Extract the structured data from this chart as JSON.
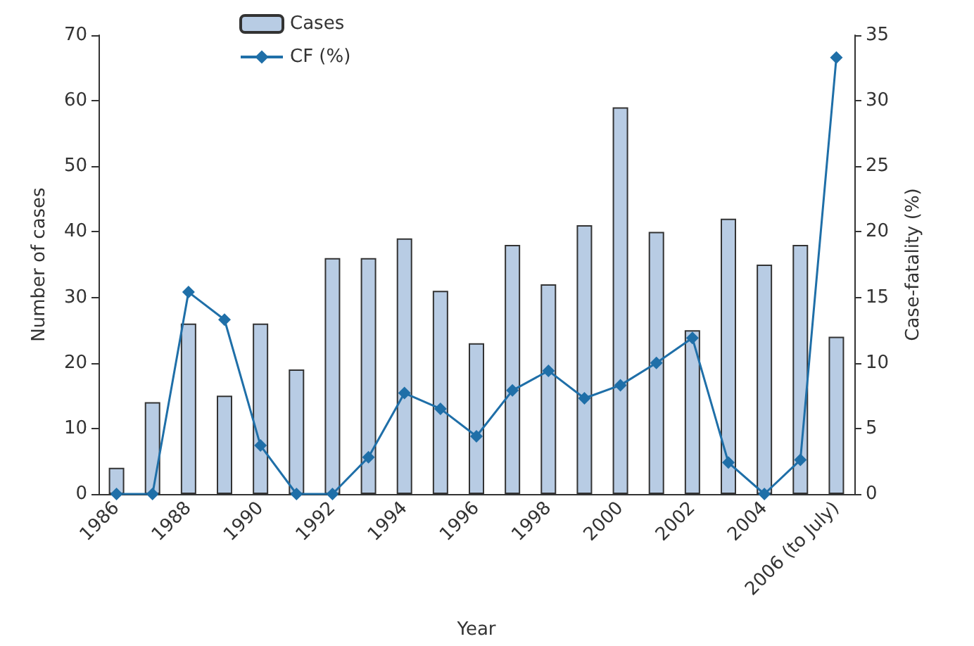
{
  "chart_data": {
    "type": "bar",
    "xlabel": "Year",
    "ylabel": "Number of cases",
    "y2label": "Case-fatality (%)",
    "categories": [
      "1986",
      null,
      "1988",
      null,
      "1990",
      null,
      "1992",
      null,
      "1994",
      null,
      "1996",
      null,
      "1998",
      null,
      "2000",
      null,
      "2002",
      null,
      "2004",
      null,
      "2006 (to July)"
    ],
    "series": [
      {
        "name": "Cases",
        "color": "#b8cce4",
        "values": [
          4,
          14,
          26,
          15,
          26,
          19,
          36,
          36,
          39,
          31,
          23,
          38,
          32,
          41,
          59,
          40,
          25,
          42,
          35,
          38,
          24
        ]
      },
      {
        "name": "CF (%)",
        "type": "line",
        "axis": "y2",
        "color": "#1f6fa8",
        "marker": "diamond",
        "values": [
          0,
          0,
          15.4,
          13.3,
          3.7,
          0,
          0,
          2.8,
          7.7,
          6.5,
          4.4,
          7.9,
          9.4,
          7.3,
          8.3,
          10,
          11.9,
          2.4,
          0,
          2.6,
          33.3
        ]
      }
    ],
    "ylim": [
      0,
      70
    ],
    "yticks": [
      0,
      10,
      20,
      30,
      40,
      50,
      60,
      70
    ],
    "y2lim": [
      0,
      35
    ],
    "y2ticks": [
      0,
      5,
      10,
      15,
      20,
      25,
      30,
      35
    ],
    "grid": false,
    "legend": "top"
  }
}
